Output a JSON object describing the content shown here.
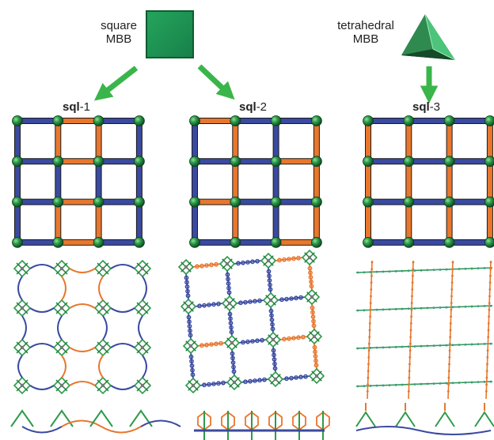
{
  "labels": {
    "square_mbb_line1": "square",
    "square_mbb_line2": "MBB",
    "tetra_mbb_line1": "tetrahedral",
    "tetra_mbb_line2": "MBB"
  },
  "nets": [
    {
      "prefix": "sql",
      "suffix": "-1"
    },
    {
      "prefix": "sql",
      "suffix": "-2"
    },
    {
      "prefix": "sql",
      "suffix": "-3"
    }
  ],
  "colors": {
    "blue": "#3a4aa0",
    "orange": "#e8772e",
    "green_node": "#2d9a4a",
    "mbb_square": "#1f9150",
    "arrow": "#3ab54a",
    "tetra_light": "#4cc47a",
    "tetra_dark": "#1d5c34"
  },
  "icons": [
    "square-mbb-icon",
    "tetrahedral-mbb-icon",
    "arrow-icon"
  ]
}
